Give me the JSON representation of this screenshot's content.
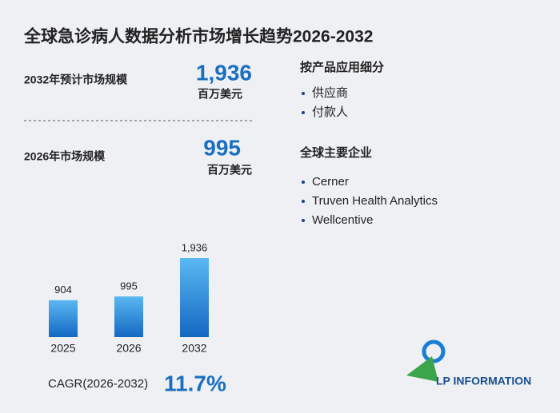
{
  "title": "全球急诊病人数据分析市场增长趋势2026-2032",
  "stats": [
    {
      "label": "2032年预计市场规模",
      "value": "1,936",
      "unit": "百万美元"
    },
    {
      "label": "2026年市场规模",
      "value": "995",
      "unit": "百万美元"
    }
  ],
  "segments": {
    "title": "按产品应用细分",
    "items": [
      "供应商",
      "付款人"
    ]
  },
  "companies": {
    "title": "全球主要企业",
    "items": [
      "Cerner",
      "Truven Health Analytics",
      "Wellcentive"
    ]
  },
  "cagr": {
    "label": "CAGR(2026-2032)",
    "value": "11.7%"
  },
  "logo": "LP INFORMATION",
  "chart_data": {
    "type": "bar",
    "categories": [
      "2025",
      "2026",
      "2032"
    ],
    "values": [
      904,
      995,
      1936
    ],
    "value_labels": [
      "904",
      "995",
      "1,936"
    ],
    "color": "#1a7fd4"
  }
}
